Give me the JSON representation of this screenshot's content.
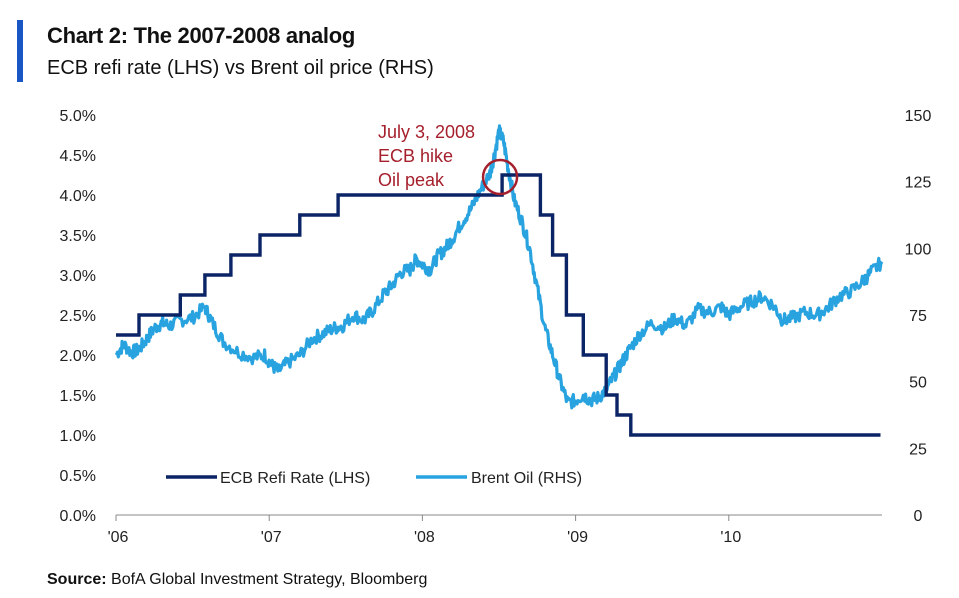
{
  "header": {
    "title": "Chart 2: The 2007-2008 analog",
    "subtitle": "ECB refi rate (LHS) vs Brent oil price (RHS)"
  },
  "footer": {
    "source_label": "Source:",
    "source_text": "BofA Global Investment Strategy, Bloomberg"
  },
  "colors": {
    "ecb": "#0b2466",
    "brent": "#29a3df",
    "annotation": "#a5202c",
    "accent": "#1a56c4"
  },
  "chart_data": {
    "type": "line",
    "title": "Chart 2: The 2007-2008 analog",
    "subtitle": "ECB refi rate (LHS) vs Brent oil price (RHS)",
    "x_range": [
      2006.0,
      2011.0
    ],
    "x_ticks": [
      {
        "value": 2006.0,
        "label": "'06"
      },
      {
        "value": 2007.0,
        "label": "'07"
      },
      {
        "value": 2008.0,
        "label": "'08"
      },
      {
        "value": 2009.0,
        "label": "'09"
      },
      {
        "value": 2010.0,
        "label": "'10"
      }
    ],
    "y_left": {
      "range": [
        0,
        5
      ],
      "ticks": [
        0,
        0.5,
        1,
        1.5,
        2,
        2.5,
        3,
        3.5,
        4,
        4.5,
        5
      ],
      "labels": [
        "0.0%",
        "0.5%",
        "1.0%",
        "1.5%",
        "2.0%",
        "2.5%",
        "3.0%",
        "3.5%",
        "4.0%",
        "4.5%",
        "5.0%"
      ]
    },
    "y_right": {
      "range": [
        0,
        150
      ],
      "ticks": [
        0,
        25,
        50,
        75,
        100,
        125,
        150
      ],
      "labels": [
        "0",
        "25",
        "50",
        "75",
        "100",
        "125",
        "150"
      ]
    },
    "legend": {
      "position": "bottom-center",
      "entries": [
        "ECB Refi Rate (LHS)",
        "Brent Oil (RHS)"
      ]
    },
    "series": [
      {
        "name": "ECB Refi Rate (LHS)",
        "axis": "left",
        "step": true,
        "points": [
          [
            2006.0,
            2.25
          ],
          [
            2006.15,
            2.5
          ],
          [
            2006.42,
            2.75
          ],
          [
            2006.58,
            3.0
          ],
          [
            2006.75,
            3.25
          ],
          [
            2006.94,
            3.5
          ],
          [
            2007.2,
            3.75
          ],
          [
            2007.45,
            4.0
          ],
          [
            2008.52,
            4.25
          ],
          [
            2008.77,
            3.75
          ],
          [
            2008.85,
            3.25
          ],
          [
            2008.94,
            2.5
          ],
          [
            2009.05,
            2.0
          ],
          [
            2009.2,
            1.5
          ],
          [
            2009.27,
            1.25
          ],
          [
            2009.36,
            1.0
          ],
          [
            2010.99,
            1.0
          ]
        ]
      },
      {
        "name": "Brent Oil (RHS)",
        "axis": "right",
        "points": [
          [
            2006.0,
            60
          ],
          [
            2006.05,
            64
          ],
          [
            2006.1,
            61
          ],
          [
            2006.15,
            62
          ],
          [
            2006.2,
            66
          ],
          [
            2006.25,
            70
          ],
          [
            2006.3,
            72
          ],
          [
            2006.35,
            71
          ],
          [
            2006.42,
            73
          ],
          [
            2006.5,
            74
          ],
          [
            2006.58,
            78
          ],
          [
            2006.63,
            72
          ],
          [
            2006.7,
            65
          ],
          [
            2006.8,
            61
          ],
          [
            2006.9,
            59
          ],
          [
            2006.97,
            60
          ],
          [
            2007.02,
            56
          ],
          [
            2007.06,
            54
          ],
          [
            2007.12,
            57
          ],
          [
            2007.2,
            60
          ],
          [
            2007.28,
            66
          ],
          [
            2007.35,
            68
          ],
          [
            2007.42,
            70
          ],
          [
            2007.48,
            71
          ],
          [
            2007.55,
            75
          ],
          [
            2007.62,
            73
          ],
          [
            2007.68,
            77
          ],
          [
            2007.75,
            83
          ],
          [
            2007.8,
            86
          ],
          [
            2007.86,
            91
          ],
          [
            2007.92,
            92
          ],
          [
            2007.96,
            96
          ],
          [
            2008.0,
            94
          ],
          [
            2008.05,
            92
          ],
          [
            2008.1,
            97
          ],
          [
            2008.15,
            100
          ],
          [
            2008.2,
            104
          ],
          [
            2008.26,
            110
          ],
          [
            2008.32,
            115
          ],
          [
            2008.38,
            122
          ],
          [
            2008.44,
            128
          ],
          [
            2008.47,
            135
          ],
          [
            2008.5,
            144
          ],
          [
            2008.53,
            140
          ],
          [
            2008.56,
            130
          ],
          [
            2008.6,
            118
          ],
          [
            2008.65,
            110
          ],
          [
            2008.7,
            100
          ],
          [
            2008.75,
            85
          ],
          [
            2008.8,
            70
          ],
          [
            2008.85,
            60
          ],
          [
            2008.9,
            50
          ],
          [
            2008.95,
            42
          ],
          [
            2009.0,
            43
          ],
          [
            2009.05,
            45
          ],
          [
            2009.1,
            43
          ],
          [
            2009.15,
            44
          ],
          [
            2009.2,
            47
          ],
          [
            2009.25,
            52
          ],
          [
            2009.3,
            57
          ],
          [
            2009.35,
            62
          ],
          [
            2009.42,
            68
          ],
          [
            2009.5,
            72
          ],
          [
            2009.58,
            70
          ],
          [
            2009.65,
            74
          ],
          [
            2009.72,
            71
          ],
          [
            2009.8,
            77
          ],
          [
            2009.88,
            76
          ],
          [
            2009.95,
            78
          ],
          [
            2010.0,
            75
          ],
          [
            2010.07,
            78
          ],
          [
            2010.15,
            80
          ],
          [
            2010.22,
            82
          ],
          [
            2010.3,
            78
          ],
          [
            2010.35,
            73
          ],
          [
            2010.42,
            74
          ],
          [
            2010.5,
            76
          ],
          [
            2010.58,
            75
          ],
          [
            2010.65,
            78
          ],
          [
            2010.72,
            82
          ],
          [
            2010.8,
            84
          ],
          [
            2010.88,
            88
          ],
          [
            2010.93,
            91
          ],
          [
            2011.0,
            95
          ]
        ]
      }
    ],
    "annotations": [
      {
        "lines": [
          "July 3, 2008",
          "ECB hike",
          "Oil peak"
        ],
        "target": [
          2008.52,
          4.25
        ]
      }
    ]
  }
}
